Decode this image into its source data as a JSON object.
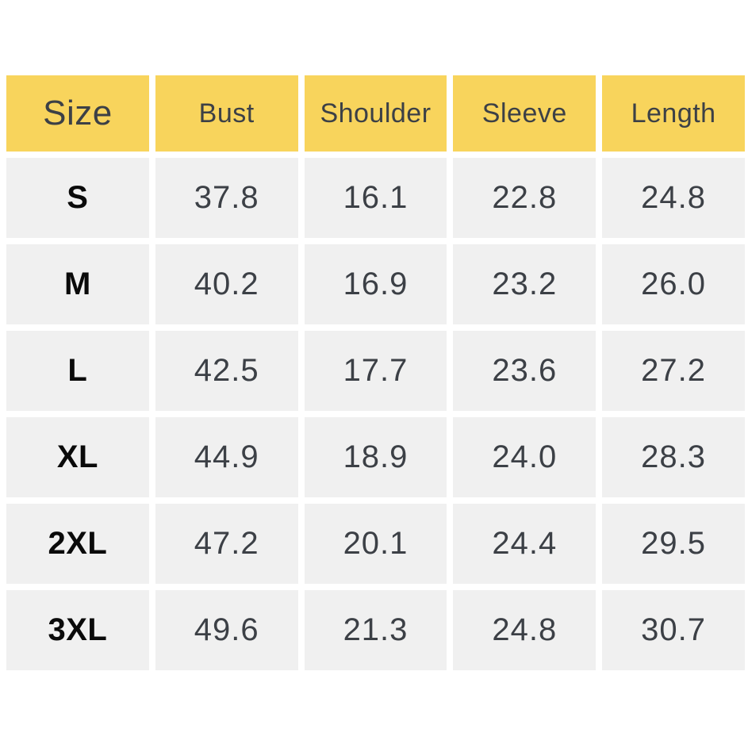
{
  "colors": {
    "header_bg": "#F8D45C",
    "row_bg": "#F0F0F0",
    "value_text": "#3C4046",
    "size_text": "#0a0a0a",
    "background": "#FFFFFF"
  },
  "chart_data": {
    "type": "table",
    "columns": [
      "Size",
      "Bust",
      "Shoulder",
      "Sleeve",
      "Length"
    ],
    "rows": [
      [
        "S",
        "37.8",
        "16.1",
        "22.8",
        "24.8"
      ],
      [
        "M",
        "40.2",
        "16.9",
        "23.2",
        "26.0"
      ],
      [
        "L",
        "42.5",
        "17.7",
        "23.6",
        "27.2"
      ],
      [
        "XL",
        "44.9",
        "18.9",
        "24.0",
        "28.3"
      ],
      [
        "2XL",
        "47.2",
        "20.1",
        "24.4",
        "29.5"
      ],
      [
        "3XL",
        "49.6",
        "21.3",
        "24.8",
        "30.7"
      ]
    ]
  }
}
